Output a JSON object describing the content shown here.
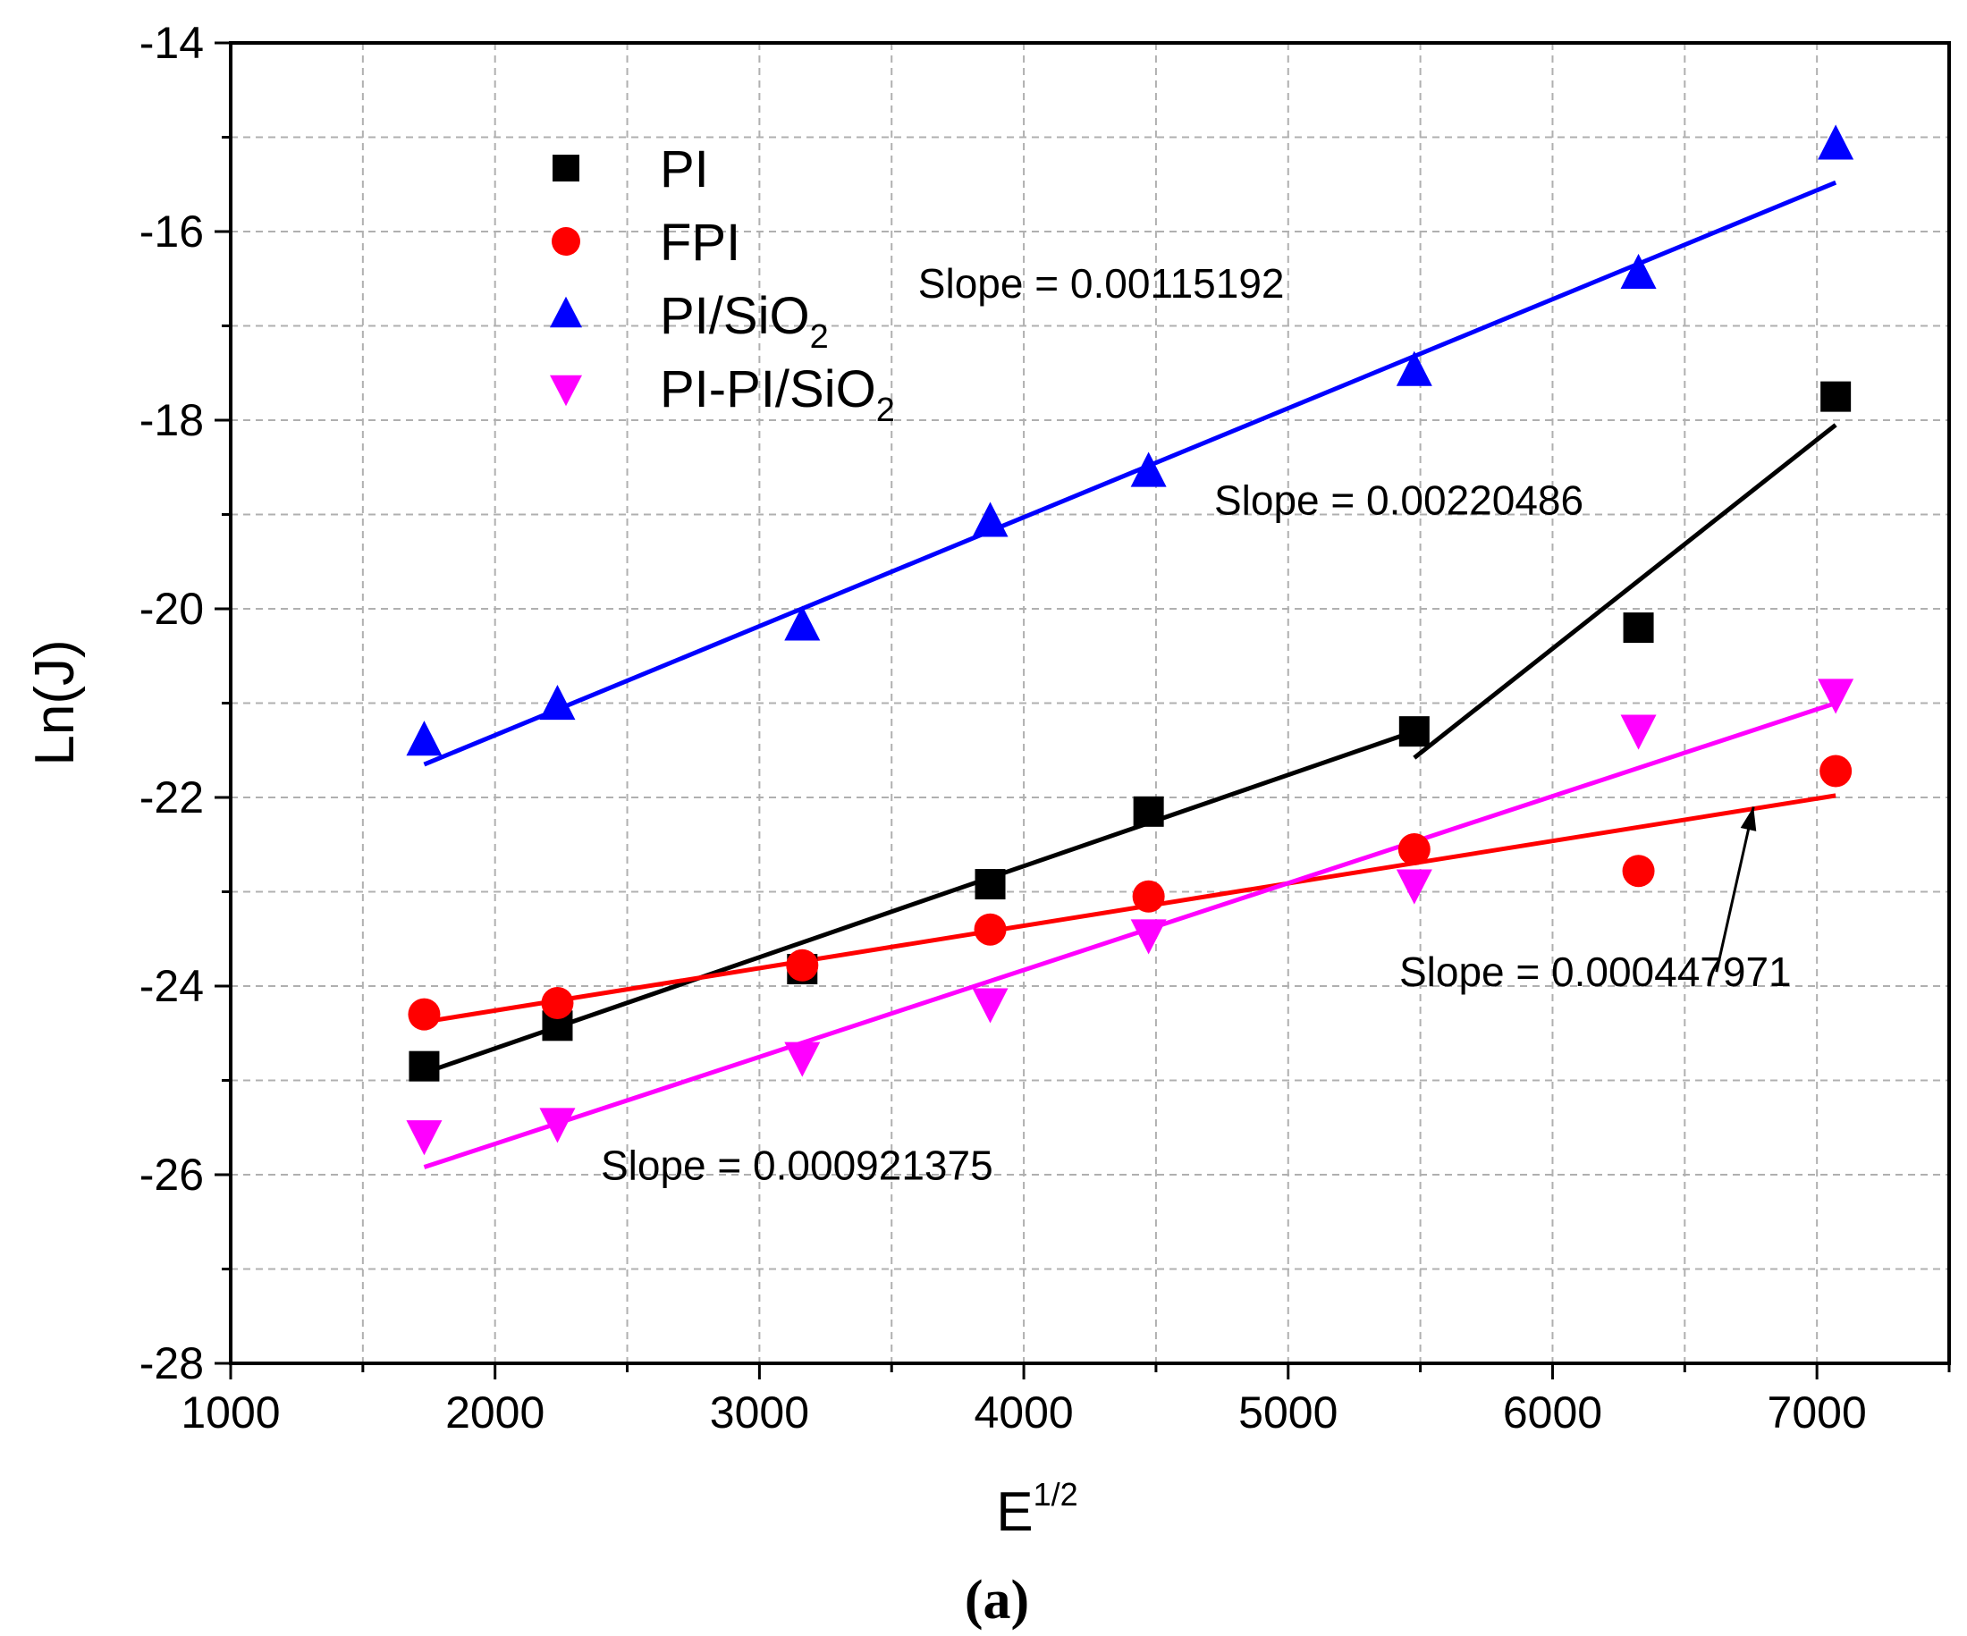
{
  "chart_data": {
    "type": "scatter",
    "title": "",
    "xlabel": "E",
    "xlabel_sup": "1/2",
    "ylabel": "Ln(J)",
    "xlim": [
      1000,
      7500
    ],
    "ylim": [
      -28,
      -14
    ],
    "xticks": [
      1000,
      2000,
      3000,
      4000,
      5000,
      6000,
      7000
    ],
    "yticks": [
      -28,
      -26,
      -24,
      -22,
      -20,
      -18,
      -16,
      -14
    ],
    "xtick_labels": [
      "1000",
      "2000",
      "3000",
      "4000",
      "5000",
      "6000",
      "7000"
    ],
    "ytick_labels": [
      "-28",
      "-26",
      "-24",
      "-22",
      "-20",
      "-18",
      "-16",
      "-14"
    ],
    "grid": true,
    "legend_position": "top-left",
    "caption": "(a)",
    "x": [
      1732,
      2236,
      3162,
      3873,
      4472,
      5477,
      6325,
      7071
    ],
    "series": [
      {
        "name": "PI",
        "legend_label": "PI",
        "legend_sub": "",
        "marker": "square",
        "color": "#000000",
        "values": [
          -24.85,
          -24.42,
          -23.82,
          -22.92,
          -22.15,
          -21.3,
          -20.2,
          -17.75
        ],
        "fits": [
          {
            "x": [
              1732,
              5477
            ],
            "y": [
              -24.92,
              -21.3
            ]
          },
          {
            "x": [
              5477,
              7071
            ],
            "y": [
              -21.58,
              -18.05
            ]
          }
        ]
      },
      {
        "name": "FPI",
        "legend_label": "FPI",
        "legend_sub": "",
        "marker": "circle",
        "color": "#ff0000",
        "values": [
          -24.3,
          -24.18,
          -23.78,
          -23.4,
          -23.05,
          -22.55,
          -22.78,
          -21.72
        ],
        "fits": [
          {
            "x": [
              1732,
              7071
            ],
            "y": [
              -24.38,
              -21.98
            ]
          }
        ]
      },
      {
        "name": "PI/SiO2",
        "legend_label": "PI/SiO",
        "legend_sub": "2",
        "marker": "triangle-up",
        "color": "#0000ff",
        "values": [
          -21.4,
          -21.02,
          -20.18,
          -19.08,
          -18.55,
          -17.48,
          -16.45,
          -15.08
        ],
        "fits": [
          {
            "x": [
              1732,
              7071
            ],
            "y": [
              -21.65,
              -15.48
            ]
          }
        ]
      },
      {
        "name": "PI-PI/SiO2",
        "legend_label": "PI-PI/SiO",
        "legend_sub": "2",
        "marker": "triangle-down",
        "color": "#ff00ff",
        "values": [
          -25.58,
          -25.45,
          -24.75,
          -24.18,
          -23.45,
          -22.92,
          -21.28,
          -20.9
        ],
        "fits": [
          {
            "x": [
              1732,
              7071
            ],
            "y": [
              -25.92,
              -21.0
            ]
          }
        ]
      }
    ],
    "annotations": [
      {
        "text": "Slope = 0.00115192",
        "x": 3600,
        "y": -16.7
      },
      {
        "text": "Slope = 0.00220486",
        "x": 4720,
        "y": -19.0
      },
      {
        "text": "Slope = 0.000447971",
        "x": 5420,
        "y": -24.0
      },
      {
        "text": "Slope = 0.000921375",
        "x": 2400,
        "y": -26.05
      }
    ],
    "arrow": {
      "from": [
        6620,
        -23.85
      ],
      "to": [
        6760,
        -22.1
      ]
    }
  }
}
